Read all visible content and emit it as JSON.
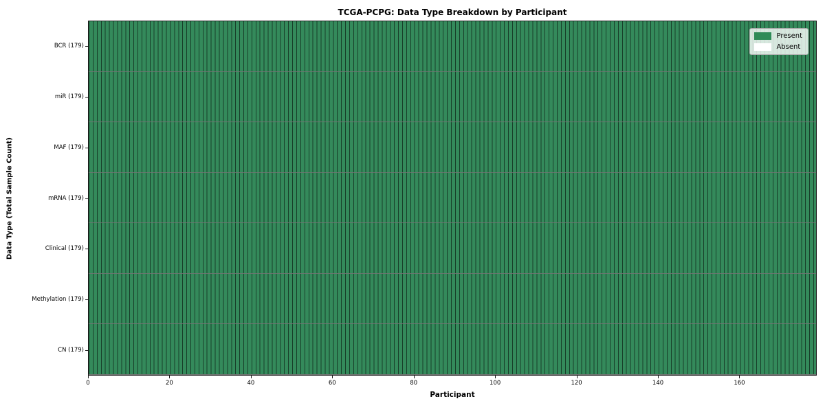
{
  "chart_data": {
    "type": "heatmap",
    "title": "TCGA-PCPG: Data Type Breakdown by Participant",
    "xlabel": "Participant",
    "ylabel": "Data Type (Total Sample Count)",
    "participants": 179,
    "x_range": [
      0,
      179
    ],
    "x_ticks": [
      0,
      20,
      40,
      60,
      80,
      100,
      120,
      140,
      160
    ],
    "categories": [
      "BCR (179)",
      "miR (179)",
      "MAF (179)",
      "mRNA (179)",
      "Clinical (179)",
      "Methylation (179)",
      "CN (179)"
    ],
    "rows": [
      {
        "label": "BCR (179)",
        "data_type": "BCR",
        "total": 179,
        "present": 179,
        "absent": 0
      },
      {
        "label": "miR (179)",
        "data_type": "miR",
        "total": 179,
        "present": 179,
        "absent": 0
      },
      {
        "label": "MAF (179)",
        "data_type": "MAF",
        "total": 179,
        "present": 179,
        "absent": 0
      },
      {
        "label": "mRNA (179)",
        "data_type": "mRNA",
        "total": 179,
        "present": 179,
        "absent": 0
      },
      {
        "label": "Clinical (179)",
        "data_type": "Clinical",
        "total": 179,
        "present": 179,
        "absent": 0
      },
      {
        "label": "Methylation (179)",
        "data_type": "Methylation",
        "total": 179,
        "present": 179,
        "absent": 0
      },
      {
        "label": "CN (179)",
        "data_type": "CN",
        "total": 179,
        "present": 179,
        "absent": 0
      }
    ],
    "legend": {
      "position": "upper right",
      "items": [
        {
          "label": "Present",
          "color": "#2e8b57"
        },
        {
          "label": "Absent",
          "color": "#ffffff"
        }
      ]
    },
    "colors": {
      "present": "#348a5b",
      "absent": "#ffffff",
      "cell_edge": "rgba(0,0,0,0.55)",
      "spine": "#1a1a1a",
      "legend_present_swatch": "#2e8b57",
      "legend_absent_swatch": "#ffffff"
    },
    "grid": "cell-borders"
  }
}
